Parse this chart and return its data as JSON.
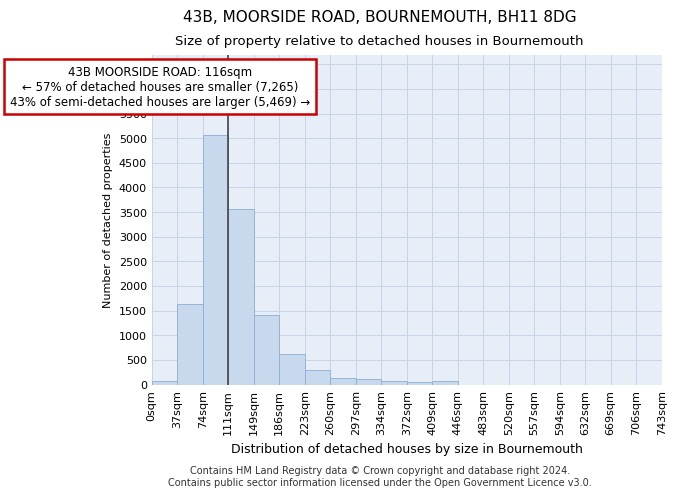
{
  "title": "43B, MOORSIDE ROAD, BOURNEMOUTH, BH11 8DG",
  "subtitle": "Size of property relative to detached houses in Bournemouth",
  "xlabel": "Distribution of detached houses by size in Bournemouth",
  "ylabel": "Number of detached properties",
  "footer1": "Contains HM Land Registry data © Crown copyright and database right 2024.",
  "footer2": "Contains public sector information licensed under the Open Government Licence v3.0.",
  "bar_values": [
    75,
    1630,
    5060,
    3570,
    1410,
    615,
    290,
    140,
    115,
    75,
    55,
    75,
    0,
    0,
    0,
    0,
    0,
    0,
    0,
    0
  ],
  "bar_color": "#c8d9ee",
  "bar_edge_color": "#8aafd4",
  "x_labels": [
    "0sqm",
    "37sqm",
    "74sqm",
    "111sqm",
    "149sqm",
    "186sqm",
    "223sqm",
    "260sqm",
    "297sqm",
    "334sqm",
    "372sqm",
    "409sqm",
    "446sqm",
    "483sqm",
    "520sqm",
    "557sqm",
    "594sqm",
    "632sqm",
    "669sqm",
    "706sqm",
    "743sqm"
  ],
  "ylim": [
    0,
    6700
  ],
  "yticks": [
    0,
    500,
    1000,
    1500,
    2000,
    2500,
    3000,
    3500,
    4000,
    4500,
    5000,
    5500,
    6000,
    6500
  ],
  "annotation_line1": "43B MOORSIDE ROAD: 116sqm",
  "annotation_line2": "← 57% of detached houses are smaller (7,265)",
  "annotation_line3": "43% of semi-detached houses are larger (5,469) →",
  "vline_x": 3,
  "grid_color": "#c8d4e8",
  "bg_color": "#e8eef8",
  "title_fontsize": 11,
  "subtitle_fontsize": 9.5,
  "xlabel_fontsize": 9,
  "ylabel_fontsize": 8,
  "tick_fontsize": 8,
  "annotation_fontsize": 8.5,
  "footer_fontsize": 7,
  "annotation_box_color": "#ffffff",
  "annotation_border_color": "#cc0000"
}
